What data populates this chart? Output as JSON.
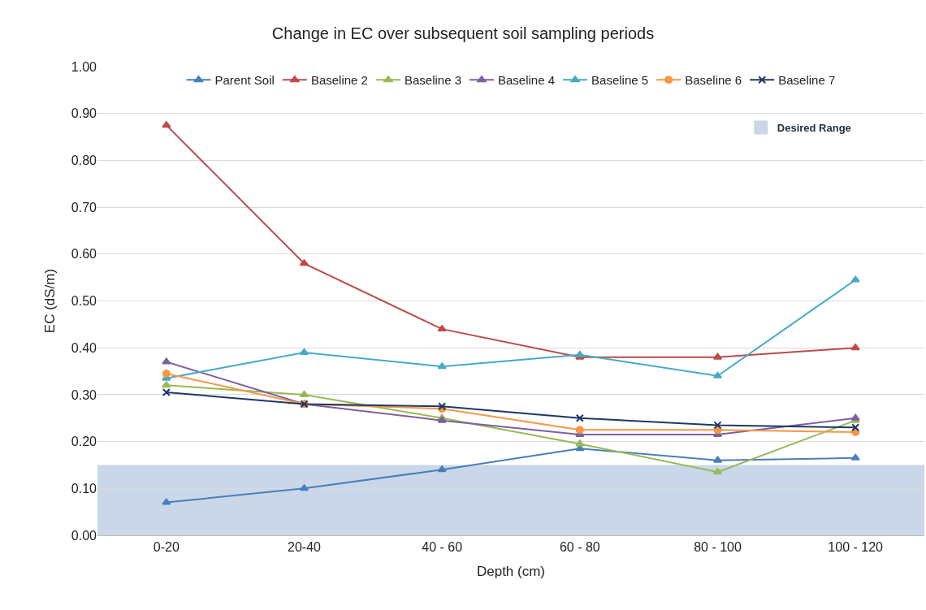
{
  "chart_data": {
    "type": "line",
    "title": "Change in EC over subsequent soil sampling periods",
    "xlabel": "Depth (cm)",
    "ylabel": "EC (dS/m)",
    "categories": [
      "0-20",
      "20-40",
      "40 - 60",
      "60 - 80",
      "80 - 100",
      "100 - 120"
    ],
    "series": [
      {
        "name": "Parent Soil",
        "color": "#4a7ebb",
        "marker": "triangle",
        "values": [
          0.07,
          0.1,
          0.14,
          0.185,
          0.16,
          0.165
        ]
      },
      {
        "name": "Baseline 2",
        "color": "#be4b48",
        "marker": "triangle",
        "values": [
          0.875,
          0.58,
          0.44,
          0.38,
          0.38,
          0.4
        ]
      },
      {
        "name": "Baseline 3",
        "color": "#98b954",
        "marker": "triangle",
        "values": [
          0.32,
          0.3,
          0.25,
          0.195,
          0.135,
          0.245
        ]
      },
      {
        "name": "Baseline 4",
        "color": "#7d60a0",
        "marker": "triangle",
        "values": [
          0.37,
          0.28,
          0.245,
          0.215,
          0.215,
          0.25
        ]
      },
      {
        "name": "Baseline 5",
        "color": "#46aac5",
        "marker": "triangle",
        "values": [
          0.335,
          0.39,
          0.36,
          0.385,
          0.34,
          0.545
        ]
      },
      {
        "name": "Baseline 6",
        "color": "#f79646",
        "marker": "circle",
        "values": [
          0.345,
          0.28,
          0.27,
          0.225,
          0.225,
          0.22
        ]
      },
      {
        "name": "Baseline 7",
        "color": "#1f3864",
        "marker": "cross",
        "values": [
          0.305,
          0.28,
          0.275,
          0.25,
          0.235,
          0.23
        ]
      }
    ],
    "ylim": [
      0,
      1
    ],
    "yticks": [
      {
        "value": 0,
        "label": "0.00"
      },
      {
        "value": 0.1,
        "label": "0.10"
      },
      {
        "value": 0.2,
        "label": "0.20"
      },
      {
        "value": 0.3,
        "label": "0.30"
      },
      {
        "value": 0.4,
        "label": "0.40"
      },
      {
        "value": 0.5,
        "label": "0.50"
      },
      {
        "value": 0.6,
        "label": "0.60"
      },
      {
        "value": 0.7,
        "label": "0.70"
      },
      {
        "value": 0.8,
        "label": "0.80"
      },
      {
        "value": 0.9,
        "label": "0.90"
      },
      {
        "value": 1,
        "label": "1.00"
      }
    ],
    "bands": [
      {
        "axis": "y",
        "from": 0,
        "to": 0.15,
        "label": "Desired Range",
        "color": "#c9d7e8"
      }
    ],
    "grid": "y",
    "legend": "top",
    "line_style": "solid"
  }
}
